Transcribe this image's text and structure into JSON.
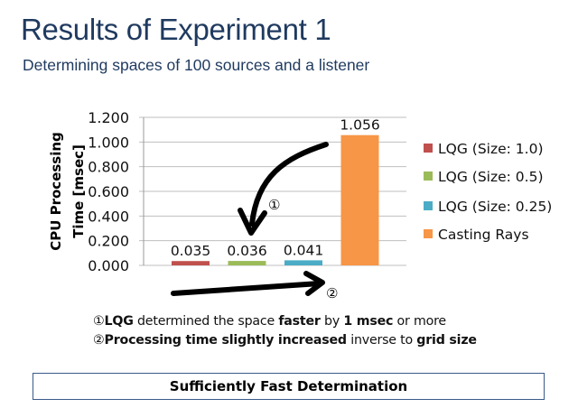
{
  "slide": {
    "title": "Results of Experiment 1",
    "subtitle": "Determining spaces of 100 sources and a listener"
  },
  "chart_data": {
    "type": "bar",
    "title": "",
    "xlabel": "",
    "ylabel_lines": [
      "CPU Processing",
      "Time [msec]"
    ],
    "ylim": [
      0,
      1.2
    ],
    "yticks": [
      0,
      0.2,
      0.4,
      0.6,
      0.8,
      1.0,
      1.2
    ],
    "ytick_labels": [
      "0.000",
      "0.200",
      "0.400",
      "0.600",
      "0.800",
      "1.000",
      "1.200"
    ],
    "grid": true,
    "legend_position": "right",
    "series": [
      {
        "name": "LQG (Size: 1.0)",
        "value": 0.035,
        "label": "0.035",
        "color": "#c0504d"
      },
      {
        "name": "LQG (Size: 0.5)",
        "value": 0.036,
        "label": "0.036",
        "color": "#9bbb59"
      },
      {
        "name": "LQG (Size: 0.25)",
        "value": 0.041,
        "label": "0.041",
        "color": "#4bacc6"
      },
      {
        "name": "Casting Rays",
        "value": 1.056,
        "label": "1.056",
        "color": "#f79646"
      }
    ],
    "annotations": [
      {
        "marker": "①",
        "description": "curved arrow from Casting Rays bar down to LQG bars"
      },
      {
        "marker": "②",
        "description": "arrow pointing right below the bars"
      }
    ]
  },
  "notes": [
    {
      "marker": "①",
      "parts": [
        {
          "text": "LQG",
          "bold": true
        },
        {
          "text": " determined the space ",
          "bold": false
        },
        {
          "text": "faster",
          "bold": true
        },
        {
          "text": " by ",
          "bold": false
        },
        {
          "text": "1 msec",
          "bold": true
        },
        {
          "text": " or more",
          "bold": false
        }
      ]
    },
    {
      "marker": "②",
      "parts": [
        {
          "text": "Processing time slightly increased",
          "bold": true
        },
        {
          "text": " inverse to ",
          "bold": false
        },
        {
          "text": "grid size",
          "bold": true
        }
      ]
    }
  ],
  "conclusion": "Sufficiently Fast Determination"
}
